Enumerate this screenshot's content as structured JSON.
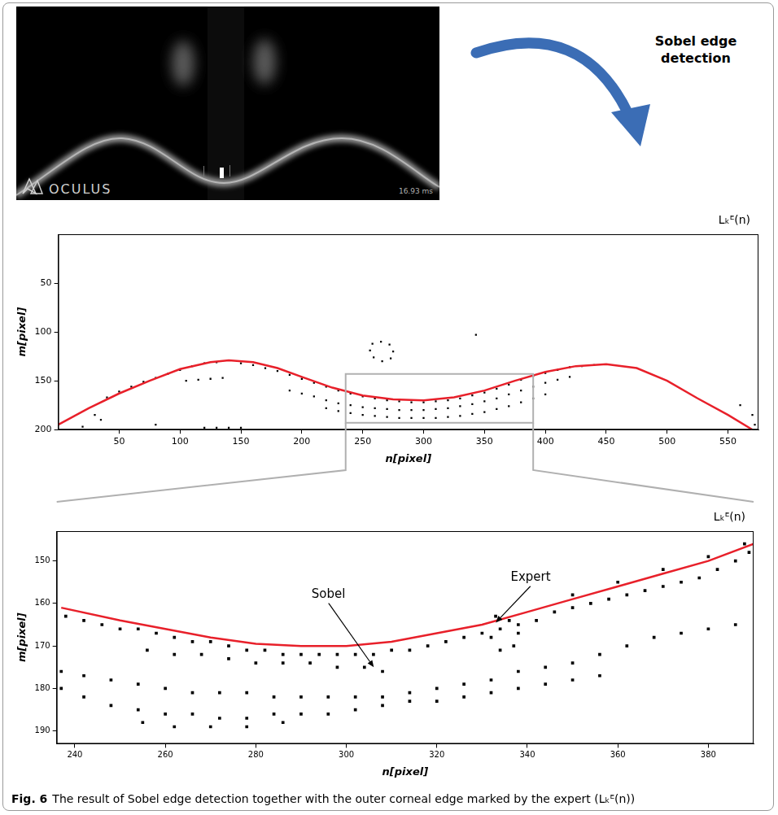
{
  "photo": {
    "logo": "OCULUS",
    "timestamp": "16.93 ms"
  },
  "arrow_label": "Sobel edge detection",
  "chart_data": [
    {
      "type": "scatter",
      "x_label": "n[pixel]",
      "y_label": "m[pixel]",
      "xlim": [
        0,
        575
      ],
      "ylim": [
        200,
        0
      ],
      "xticks": [
        50,
        100,
        150,
        200,
        250,
        300,
        350,
        400,
        450,
        500,
        550
      ],
      "yticks": [
        50,
        100,
        150,
        200
      ],
      "grid": false,
      "legend": "top",
      "series": [
        {
          "type": "scatter",
          "color": "#000000",
          "marker": "square",
          "x": [
            40,
            50,
            60,
            70,
            80,
            90,
            100,
            110,
            120,
            130,
            105,
            115,
            125,
            135,
            150,
            160,
            170,
            180,
            190,
            200,
            210,
            220,
            230,
            240,
            250,
            260,
            270,
            280,
            290,
            300,
            310,
            320,
            330,
            340,
            350,
            360,
            370,
            380,
            390,
            400,
            410,
            420,
            430,
            440,
            190,
            200,
            210,
            220,
            230,
            240,
            250,
            260,
            270,
            280,
            290,
            300,
            310,
            320,
            330,
            340,
            350,
            360,
            370,
            380,
            390,
            400,
            410,
            420,
            220,
            230,
            240,
            250,
            260,
            270,
            280,
            290,
            300,
            310,
            320,
            330,
            340,
            350,
            360,
            370,
            380,
            390,
            400,
            258,
            265,
            272,
            275,
            273,
            266,
            259,
            256,
            343,
            30,
            35,
            20,
            80,
            120,
            130,
            140,
            150,
            560,
            570,
            572
          ],
          "values": [
            167,
            161,
            156,
            151,
            147,
            143,
            139,
            135,
            132,
            131,
            150,
            149,
            148,
            147,
            132,
            134,
            137,
            140,
            144,
            148,
            152,
            156,
            160,
            163,
            166,
            168,
            170,
            171,
            172,
            172,
            171,
            170,
            168,
            165,
            162,
            158,
            154,
            149,
            145,
            142,
            139,
            136,
            135,
            134,
            160,
            163,
            166,
            170,
            173,
            175,
            177,
            178,
            179,
            180,
            180,
            180,
            179,
            178,
            176,
            174,
            171,
            168,
            164,
            160,
            156,
            152,
            149,
            146,
            178,
            181,
            183,
            185,
            186,
            187,
            188,
            188,
            188,
            188,
            187,
            186,
            184,
            182,
            179,
            176,
            172,
            168,
            164,
            112,
            110,
            113,
            120,
            127,
            130,
            126,
            119,
            103,
            185,
            190,
            197,
            195,
            198,
            198,
            198,
            198,
            175,
            185,
            195
          ]
        },
        {
          "name": "Lₖᴱ(n)",
          "type": "line",
          "color": "#e8202a",
          "marker": "none",
          "line_style": "solid",
          "x": [
            0,
            25,
            50,
            75,
            100,
            125,
            140,
            160,
            180,
            200,
            225,
            250,
            275,
            300,
            325,
            350,
            375,
            400,
            425,
            450,
            475,
            500,
            525,
            550,
            570
          ],
          "values": [
            195,
            178,
            163,
            150,
            138,
            131,
            129,
            131,
            137,
            146,
            157,
            165,
            169,
            170,
            167,
            160,
            150,
            141,
            135,
            133,
            137,
            150,
            168,
            185,
            200
          ]
        }
      ]
    },
    {
      "type": "scatter",
      "x_label": "n[pixel]",
      "y_label": "m[pixel]",
      "xlim": [
        236,
        390
      ],
      "ylim": [
        193,
        143
      ],
      "xticks": [
        240,
        260,
        280,
        300,
        320,
        340,
        360,
        380
      ],
      "yticks": [
        150,
        160,
        170,
        180,
        190
      ],
      "grid": false,
      "legend": "top",
      "annotations": [
        "Sobel",
        "Expert"
      ],
      "series": [
        {
          "type": "scatter",
          "color": "#000000",
          "marker": "square",
          "x": [
            238,
            242,
            246,
            250,
            254,
            258,
            262,
            266,
            270,
            274,
            278,
            282,
            286,
            290,
            294,
            298,
            302,
            306,
            310,
            314,
            318,
            322,
            326,
            330,
            334,
            338,
            342,
            346,
            350,
            354,
            358,
            362,
            366,
            370,
            374,
            378,
            382,
            386,
            389,
            256,
            262,
            268,
            274,
            280,
            286,
            292,
            298,
            304,
            308,
            237,
            242,
            248,
            254,
            260,
            266,
            272,
            278,
            284,
            290,
            296,
            302,
            308,
            314,
            320,
            326,
            332,
            338,
            344,
            350,
            356,
            362,
            368,
            374,
            380,
            386,
            237,
            242,
            248,
            254,
            260,
            266,
            272,
            278,
            284,
            290,
            296,
            302,
            308,
            314,
            320,
            326,
            332,
            338,
            344,
            350,
            356,
            255,
            262,
            270,
            278,
            286,
            333,
            336,
            338,
            337,
            334,
            332,
            350,
            360,
            370,
            380,
            388
          ],
          "values": [
            163,
            164,
            165,
            166,
            166,
            167,
            168,
            169,
            169,
            170,
            171,
            171,
            172,
            172,
            172,
            172,
            172,
            172,
            171,
            171,
            170,
            169,
            168,
            167,
            166,
            165,
            164,
            162,
            161,
            160,
            159,
            158,
            157,
            156,
            155,
            154,
            152,
            150,
            148,
            171,
            172,
            172,
            173,
            174,
            174,
            174,
            175,
            175,
            176,
            176,
            177,
            178,
            179,
            180,
            181,
            181,
            181,
            182,
            182,
            182,
            182,
            182,
            181,
            180,
            179,
            178,
            176,
            175,
            174,
            172,
            170,
            168,
            167,
            166,
            165,
            180,
            182,
            184,
            185,
            186,
            186,
            187,
            187,
            186,
            186,
            186,
            185,
            184,
            183,
            183,
            182,
            181,
            180,
            179,
            178,
            177,
            188,
            189,
            189,
            189,
            188,
            163,
            164,
            167,
            170,
            171,
            168,
            158,
            155,
            152,
            149,
            146
          ]
        },
        {
          "name": "Lₖᴱ(n)",
          "type": "line",
          "color": "#e8202a",
          "marker": "none",
          "line_style": "solid",
          "x": [
            237,
            250,
            260,
            270,
            280,
            290,
            300,
            310,
            320,
            330,
            340,
            350,
            360,
            370,
            380,
            390
          ],
          "values": [
            161,
            164,
            166,
            168,
            169.5,
            170,
            170,
            169,
            167,
            165,
            162,
            159,
            156,
            153,
            150,
            146
          ]
        }
      ]
    }
  ],
  "caption": {
    "label": "Fig. 6",
    "text": "The result of Sobel edge detection together with the outer corneal edge marked by the expert (Lₖᴱ(n))"
  }
}
